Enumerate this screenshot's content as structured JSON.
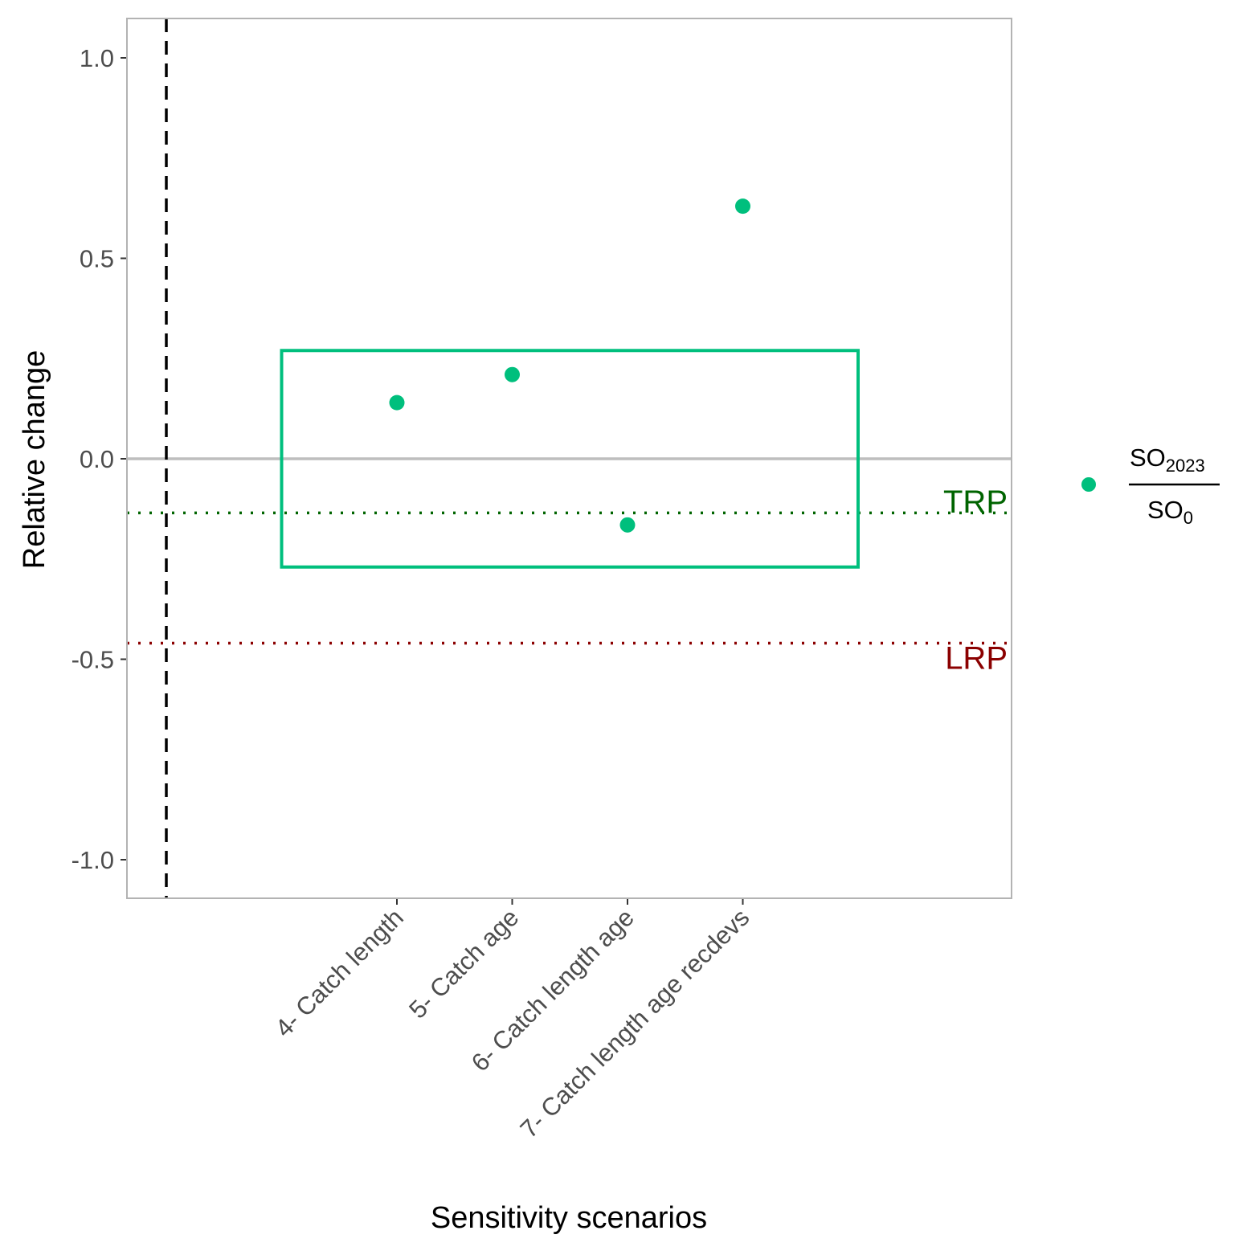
{
  "chart_data": {
    "type": "scatter",
    "xlabel": "Sensitivity scenarios",
    "ylabel": "Relative change",
    "ylim": [
      -1.1,
      1.1
    ],
    "yticks": [
      1.0,
      0.5,
      0.0,
      -0.5,
      -1.0
    ],
    "ytick_labels": [
      "1.0",
      "0.5",
      "0.0",
      "-0.5",
      "-1.0"
    ],
    "categories": [
      "4- Catch length",
      "5- Catch age",
      "6- Catch length age",
      "7- Catch length age recdevs"
    ],
    "series": [
      {
        "values": [
          0.14,
          0.21,
          -0.165,
          0.63
        ],
        "color": "#00BF7D"
      }
    ],
    "reference_lines": {
      "zero": {
        "y": 0.0,
        "color": "#BEBEBE",
        "style": "solid"
      },
      "trp": {
        "y": -0.135,
        "label": "TRP",
        "color": "#006400",
        "style": "dotted"
      },
      "lrp": {
        "y": -0.46,
        "label": "LRP",
        "color": "#8B0000",
        "style": "dotted"
      }
    },
    "range_box": {
      "y_min": -0.27,
      "y_max": 0.27,
      "color": "#00BF7D"
    },
    "vertical_dashed_line": {
      "color": "#000000",
      "style": "dashed"
    },
    "legend": {
      "position": "right",
      "numerator": {
        "text": "SO",
        "sub": "2023"
      },
      "denominator": {
        "text": "SO",
        "sub": "0"
      },
      "marker_color": "#00BF7D"
    },
    "grid": false
  }
}
